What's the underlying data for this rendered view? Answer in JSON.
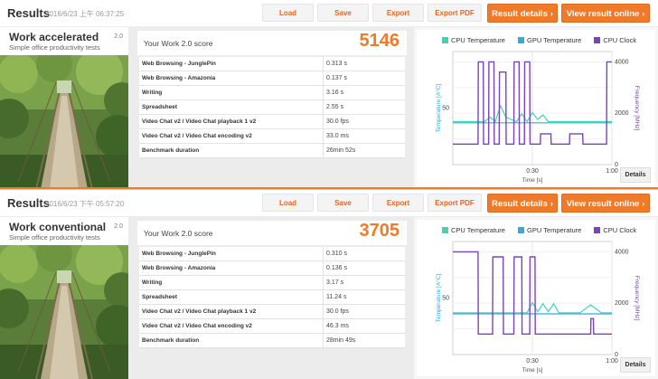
{
  "colors": {
    "accent": "#ee7a2a",
    "cpu_temp": "#3ed6b0",
    "gpu_temp": "#33aadb",
    "cpu_clock": "#7a45b8"
  },
  "buttons": {
    "load": "Load",
    "save": "Save",
    "export": "Export",
    "export_pdf": "Export PDF",
    "result_details": "Result details",
    "view_online": "View result online",
    "details": "Details"
  },
  "panels": [
    {
      "title": "Results",
      "timestamp": "2016/6/23 上午 06:37:25",
      "workload_name": "Work accelerated",
      "workload_subtitle": "Simple office productivity tests",
      "version": "2.0",
      "score_label": "Your Work 2.0 score",
      "score": "5146",
      "rows": [
        {
          "label": "Web Browsing - JunglePin",
          "value": "0.313 s"
        },
        {
          "label": "Web Browsing - Amazonia",
          "value": "0.137 s"
        },
        {
          "label": "Writing",
          "value": "3.16 s"
        },
        {
          "label": "Spreadsheet",
          "value": "2.55 s"
        },
        {
          "label": "Video Chat v2 / Video Chat playback 1 v2",
          "value": "30.0 fps"
        },
        {
          "label": "Video Chat v2 / Video Chat encoding v2",
          "value": "33.0 ms"
        },
        {
          "label": "Benchmark duration",
          "value": "26min 52s"
        }
      ]
    },
    {
      "title": "Results",
      "timestamp": "2016/6/23 下午 05:57:20",
      "workload_name": "Work conventional",
      "workload_subtitle": "Simple office productivity tests",
      "version": "2.0",
      "score_label": "Your Work 2.0 score",
      "score": "3705",
      "rows": [
        {
          "label": "Web Browsing - JunglePin",
          "value": "0.310 s"
        },
        {
          "label": "Web Browsing - Amazonia",
          "value": "0.136 s"
        },
        {
          "label": "Writing",
          "value": "3.17 s"
        },
        {
          "label": "Spreadsheet",
          "value": "11.24 s"
        },
        {
          "label": "Video Chat v2 / Video Chat playback 1 v2",
          "value": "30.0 fps"
        },
        {
          "label": "Video Chat v2 / Video Chat encoding v2",
          "value": "46.3 ms"
        },
        {
          "label": "Benchmark duration",
          "value": "28min 49s"
        }
      ]
    }
  ],
  "chart_data": [
    {
      "type": "line",
      "legend": [
        "CPU Temperature",
        "GPU Temperature",
        "CPU Clock"
      ],
      "xlabel": "Time [s]",
      "ylabel_left": "Temperature [A°C]",
      "ylabel_right": "Frequency [MHz]",
      "x_ticks": [
        "0:30",
        "1:00"
      ],
      "y_left_ticks": [
        "50"
      ],
      "y_right_ticks": [
        "4000",
        "2000",
        "0"
      ],
      "xlim": [
        0,
        60
      ],
      "ylim_left": [
        0,
        100
      ],
      "ylim_right": [
        0,
        4400
      ],
      "series": [
        {
          "name": "CPU Temperature",
          "axis": "left",
          "x": [
            0,
            2,
            4,
            6,
            8,
            10,
            12,
            14,
            16,
            18,
            20,
            22,
            24,
            26,
            28,
            30,
            32,
            34,
            36,
            38,
            40,
            42,
            44,
            46,
            48,
            50,
            52,
            54,
            56,
            58,
            60
          ],
          "y": [
            38,
            38,
            38,
            38,
            38,
            38,
            38,
            42,
            38,
            52,
            42,
            40,
            38,
            45,
            38,
            46,
            40,
            44,
            38,
            38,
            38,
            38,
            38,
            38,
            38,
            38,
            38,
            38,
            38,
            38,
            38
          ]
        },
        {
          "name": "GPU Temperature",
          "axis": "left",
          "x": [
            0,
            4,
            8,
            12,
            16,
            20,
            24,
            28,
            32,
            36,
            40,
            44,
            48,
            52,
            56,
            60
          ],
          "y": [
            37,
            37,
            37,
            37,
            37,
            37,
            37,
            37,
            37,
            37,
            37,
            37,
            37,
            37,
            37,
            37
          ]
        },
        {
          "name": "CPU Clock",
          "axis": "right",
          "x": [
            0,
            9.5,
            9.6,
            11.5,
            11.6,
            13.5,
            13.6,
            15.5,
            15.6,
            17.5,
            17.6,
            20,
            20.1,
            23,
            23.1,
            25,
            25.1,
            27,
            27.1,
            29,
            29.1,
            33,
            33.1,
            37,
            37.1,
            44,
            44.1,
            49,
            49.1,
            53,
            53.1,
            58,
            58.1,
            60
          ],
          "y": [
            800,
            800,
            4000,
            4000,
            800,
            800,
            4000,
            4000,
            800,
            800,
            3600,
            3600,
            800,
            800,
            4000,
            4000,
            800,
            800,
            4000,
            4000,
            800,
            800,
            1200,
            1200,
            800,
            800,
            1200,
            1200,
            800,
            800,
            800,
            800,
            4000,
            4000
          ]
        }
      ]
    },
    {
      "type": "line",
      "legend": [
        "CPU Temperature",
        "GPU Temperature",
        "CPU Clock"
      ],
      "xlabel": "Time [s]",
      "ylabel_left": "Temperature [A°C]",
      "ylabel_right": "Frequency [MHz]",
      "x_ticks": [
        "0:30",
        "1:00"
      ],
      "y_left_ticks": [
        "50"
      ],
      "y_right_ticks": [
        "4000",
        "2000",
        "0"
      ],
      "xlim": [
        0,
        60
      ],
      "ylim_left": [
        0,
        100
      ],
      "ylim_right": [
        0,
        4400
      ],
      "series": [
        {
          "name": "CPU Temperature",
          "axis": "left",
          "x": [
            0,
            4,
            8,
            12,
            16,
            20,
            24,
            28,
            30,
            32,
            34,
            36,
            38,
            40,
            44,
            48,
            52,
            56,
            60
          ],
          "y": [
            37,
            37,
            37,
            37,
            37,
            37,
            37,
            37,
            46,
            38,
            45,
            38,
            45,
            37,
            37,
            37,
            44,
            37,
            37
          ]
        },
        {
          "name": "GPU Temperature",
          "axis": "left",
          "x": [
            0,
            6,
            12,
            18,
            24,
            30,
            36,
            42,
            48,
            54,
            60
          ],
          "y": [
            36,
            36,
            36,
            36,
            36,
            36,
            36,
            36,
            36,
            36,
            36
          ]
        },
        {
          "name": "CPU Clock",
          "axis": "right",
          "x": [
            0,
            9.5,
            9.6,
            15,
            15.1,
            19,
            19.1,
            23,
            23.1,
            26,
            26.1,
            29,
            29.1,
            31,
            31.1,
            37,
            37.1,
            44,
            44.1,
            52,
            52.1,
            53,
            53.1,
            60
          ],
          "y": [
            4000,
            4000,
            800,
            800,
            3800,
            3800,
            800,
            800,
            3800,
            3800,
            800,
            800,
            3800,
            3800,
            800,
            800,
            800,
            800,
            800,
            800,
            1400,
            1400,
            800,
            800
          ]
        }
      ]
    }
  ]
}
